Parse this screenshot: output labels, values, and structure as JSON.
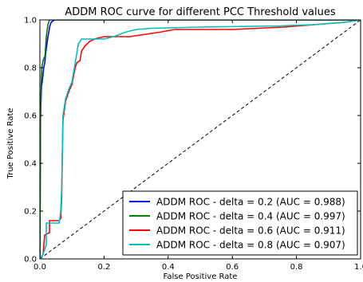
{
  "chart_data": {
    "type": "line",
    "title": "ADDM ROC curve for different PCC Threshold values",
    "xlabel": "False Positive Rate",
    "ylabel": "True Positive Rate",
    "xlim": [
      0,
      1
    ],
    "ylim": [
      0,
      1
    ],
    "xticks": [
      0,
      0.2,
      0.4,
      0.6,
      0.8,
      1.0
    ],
    "yticks": [
      0,
      0.2,
      0.4,
      0.6,
      0.8,
      1.0
    ],
    "xtick_labels": [
      "0.0",
      "0.2",
      "0.4",
      "0.6",
      "0.8",
      "1.0"
    ],
    "ytick_labels": [
      "0.0",
      "0.2",
      "0.4",
      "0.6",
      "0.8",
      "1.0"
    ],
    "grid": false,
    "legend_position": "bottom-right",
    "diagonal": {
      "style": "dashed",
      "color": "#000000",
      "points": [
        [
          0,
          0
        ],
        [
          1,
          1
        ]
      ]
    },
    "series": [
      {
        "name": "ADDM ROC - delta = 0.2 (AUC = 0.988)",
        "color": "#0000ff",
        "points": [
          [
            0,
            0
          ],
          [
            0.002,
            0.6
          ],
          [
            0.005,
            0.72
          ],
          [
            0.008,
            0.75
          ],
          [
            0.012,
            0.8
          ],
          [
            0.015,
            0.82
          ],
          [
            0.018,
            0.86
          ],
          [
            0.022,
            0.9
          ],
          [
            0.025,
            0.93
          ],
          [
            0.028,
            0.95
          ],
          [
            0.03,
            0.97
          ],
          [
            0.035,
            0.99
          ],
          [
            0.045,
            1.0
          ],
          [
            1.0,
            1.0
          ]
        ]
      },
      {
        "name": "ADDM ROC - delta = 0.4 (AUC = 0.997)",
        "color": "#008000",
        "points": [
          [
            0,
            0
          ],
          [
            0.002,
            0.6
          ],
          [
            0.004,
            0.73
          ],
          [
            0.006,
            0.8
          ],
          [
            0.01,
            0.83
          ],
          [
            0.013,
            0.84
          ],
          [
            0.016,
            0.85
          ],
          [
            0.02,
            0.93
          ],
          [
            0.025,
            0.98
          ],
          [
            0.03,
            1.0
          ],
          [
            1.0,
            1.0
          ]
        ]
      },
      {
        "name": "ADDM ROC - delta = 0.6 (AUC = 0.911)",
        "color": "#ff0000",
        "points": [
          [
            0,
            0
          ],
          [
            0.01,
            0.02
          ],
          [
            0.015,
            0.1
          ],
          [
            0.03,
            0.11
          ],
          [
            0.03,
            0.16
          ],
          [
            0.06,
            0.16
          ],
          [
            0.065,
            0.17
          ],
          [
            0.068,
            0.26
          ],
          [
            0.07,
            0.43
          ],
          [
            0.072,
            0.58
          ],
          [
            0.08,
            0.66
          ],
          [
            0.09,
            0.7
          ],
          [
            0.1,
            0.73
          ],
          [
            0.11,
            0.8
          ],
          [
            0.115,
            0.82
          ],
          [
            0.125,
            0.83
          ],
          [
            0.13,
            0.87
          ],
          [
            0.14,
            0.89
          ],
          [
            0.155,
            0.91
          ],
          [
            0.17,
            0.92
          ],
          [
            0.2,
            0.93
          ],
          [
            0.28,
            0.93
          ],
          [
            0.33,
            0.94
          ],
          [
            0.38,
            0.95
          ],
          [
            0.42,
            0.96
          ],
          [
            0.6,
            0.96
          ],
          [
            0.76,
            0.97
          ],
          [
            0.95,
            0.99
          ],
          [
            1.0,
            1.0
          ]
        ]
      },
      {
        "name": "ADDM ROC - delta = 0.8 (AUC = 0.907)",
        "color": "#00bfbf",
        "points": [
          [
            0,
            0
          ],
          [
            0.01,
            0.02
          ],
          [
            0.02,
            0.06
          ],
          [
            0.02,
            0.15
          ],
          [
            0.06,
            0.15
          ],
          [
            0.065,
            0.2
          ],
          [
            0.068,
            0.3
          ],
          [
            0.07,
            0.45
          ],
          [
            0.072,
            0.6
          ],
          [
            0.08,
            0.67
          ],
          [
            0.09,
            0.71
          ],
          [
            0.1,
            0.74
          ],
          [
            0.105,
            0.78
          ],
          [
            0.11,
            0.82
          ],
          [
            0.115,
            0.86
          ],
          [
            0.12,
            0.9
          ],
          [
            0.13,
            0.92
          ],
          [
            0.2,
            0.92
          ],
          [
            0.23,
            0.93
          ],
          [
            0.27,
            0.95
          ],
          [
            0.3,
            0.96
          ],
          [
            0.35,
            0.965
          ],
          [
            0.5,
            0.97
          ],
          [
            0.75,
            0.975
          ],
          [
            0.85,
            0.98
          ],
          [
            0.95,
            0.99
          ],
          [
            1.0,
            1.0
          ]
        ]
      }
    ]
  }
}
